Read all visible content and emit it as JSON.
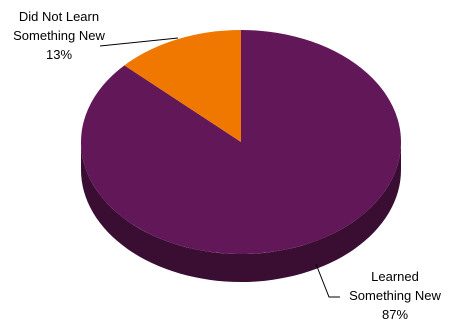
{
  "chart_data": {
    "type": "pie",
    "style": "3d",
    "slices": [
      {
        "label_lines": [
          "Learned",
          "Something New"
        ],
        "pct_text": "87%",
        "value": 87,
        "color": "#621758",
        "side_color": "#3a0e33"
      },
      {
        "label_lines": [
          "Did Not Learn",
          "Something New"
        ],
        "pct_text": "13%",
        "value": 13,
        "color": "#f07800",
        "side_color": "#9a4d00"
      }
    ],
    "legend": "none"
  }
}
